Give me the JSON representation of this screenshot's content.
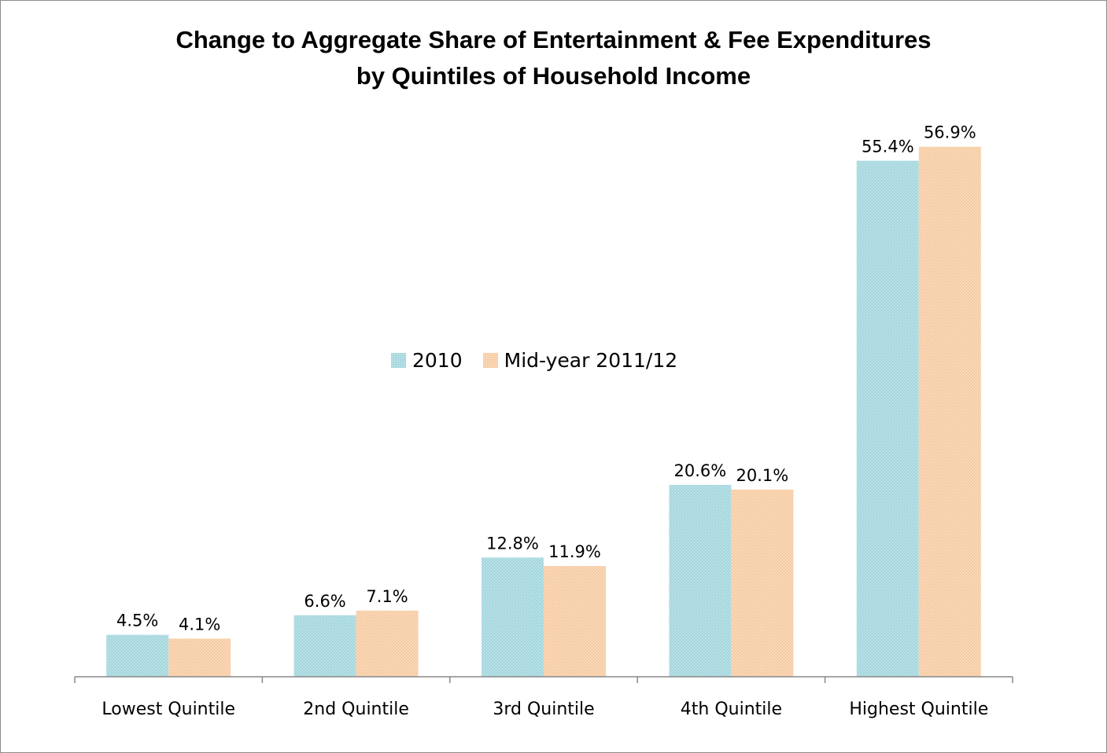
{
  "chart_data": {
    "type": "bar",
    "title_lines": [
      "Change to Aggregate Share of Entertainment & Fee Expenditures",
      "by Quintiles of Household Income"
    ],
    "categories": [
      "Lowest Quintile",
      "2nd Quintile",
      "3rd Quintile",
      "4th Quintile",
      "Highest Quintile"
    ],
    "series": [
      {
        "name": "2010",
        "color": "#a9d9e0",
        "values": [
          4.5,
          6.6,
          12.8,
          20.6,
          55.4
        ],
        "labels": [
          "4.5%",
          "6.6%",
          "12.8%",
          "20.6%",
          "55.4%"
        ]
      },
      {
        "name": "Mid-year 2011/12",
        "color": "#f7cfa9",
        "values": [
          4.1,
          7.1,
          11.9,
          20.1,
          56.9
        ],
        "labels": [
          "4.1%",
          "7.1%",
          "11.9%",
          "20.1%",
          "56.9%"
        ]
      }
    ],
    "ylim": [
      0,
      60
    ],
    "grid": false,
    "legend": "center",
    "value_axis_visible": false
  }
}
